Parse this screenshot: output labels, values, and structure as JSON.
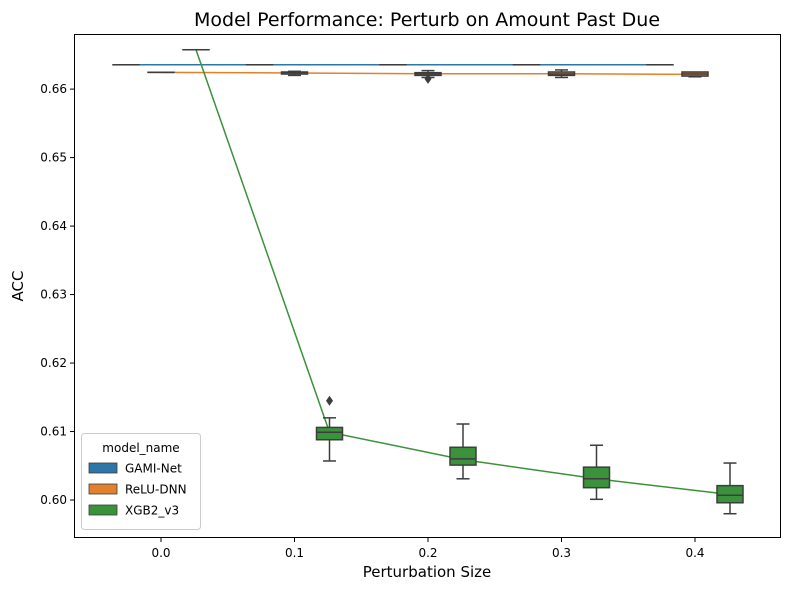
{
  "chart_data": {
    "type": "box",
    "title": "Model Performance: Perturb on Amount Past Due",
    "xlabel": "Perturbation Size",
    "ylabel": "ACC",
    "categories": [
      "0.0",
      "0.1",
      "0.2",
      "0.3",
      "0.4"
    ],
    "ylim": [
      0.5946,
      0.6679
    ],
    "yticks": [
      "0.60",
      "0.61",
      "0.62",
      "0.63",
      "0.64",
      "0.65",
      "0.66"
    ],
    "grid": false,
    "legend": {
      "title": "model_name",
      "placement": "lower-left"
    },
    "series": [
      {
        "name": "GAMI-Net",
        "color": "#2d76a8",
        "mean_line": [
          0.66355,
          0.66355,
          0.66355,
          0.66355,
          0.66355
        ],
        "boxes": [
          {
            "whislo": 0.66355,
            "q1": 0.66355,
            "med": 0.66355,
            "q3": 0.66355,
            "whishi": 0.66355,
            "fliers": []
          },
          {
            "whislo": 0.66355,
            "q1": 0.66355,
            "med": 0.66355,
            "q3": 0.66355,
            "whishi": 0.66355,
            "fliers": []
          },
          {
            "whislo": 0.66355,
            "q1": 0.66355,
            "med": 0.66355,
            "q3": 0.66355,
            "whishi": 0.66355,
            "fliers": []
          },
          {
            "whislo": 0.66355,
            "q1": 0.66355,
            "med": 0.66355,
            "q3": 0.66355,
            "whishi": 0.66355,
            "fliers": []
          },
          {
            "whislo": 0.66355,
            "q1": 0.66355,
            "med": 0.66355,
            "q3": 0.66355,
            "whishi": 0.66355,
            "fliers": []
          }
        ]
      },
      {
        "name": "ReLU-DNN",
        "color": "#e1812c",
        "mean_line": [
          0.66245,
          0.66235,
          0.66225,
          0.66225,
          0.66215
        ],
        "boxes": [
          {
            "whislo": 0.66245,
            "q1": 0.66245,
            "med": 0.66245,
            "q3": 0.66245,
            "whishi": 0.66245,
            "fliers": []
          },
          {
            "whislo": 0.662,
            "q1": 0.6622,
            "med": 0.6624,
            "q3": 0.6625,
            "whishi": 0.6626,
            "fliers": []
          },
          {
            "whislo": 0.6617,
            "q1": 0.662,
            "med": 0.6622,
            "q3": 0.6624,
            "whishi": 0.6627,
            "fliers": [
              0.6615
            ]
          },
          {
            "whislo": 0.6617,
            "q1": 0.662,
            "med": 0.6622,
            "q3": 0.6625,
            "whishi": 0.6628,
            "fliers": []
          },
          {
            "whislo": 0.6618,
            "q1": 0.6619,
            "med": 0.6622,
            "q3": 0.6625,
            "whishi": 0.6625,
            "fliers": []
          }
        ]
      },
      {
        "name": "XGB2_v3",
        "color": "#3a923a",
        "mean_line": [
          0.66575,
          0.6099,
          0.6059,
          0.6031,
          0.6008
        ],
        "boxes": [
          {
            "whislo": 0.66575,
            "q1": 0.66575,
            "med": 0.66575,
            "q3": 0.66575,
            "whishi": 0.66575,
            "fliers": []
          },
          {
            "whislo": 0.6057,
            "q1": 0.6088,
            "med": 0.6099,
            "q3": 0.6106,
            "whishi": 0.612,
            "fliers": [
              0.6145
            ]
          },
          {
            "whislo": 0.6031,
            "q1": 0.6051,
            "med": 0.606,
            "q3": 0.6077,
            "whishi": 0.6111,
            "fliers": []
          },
          {
            "whislo": 0.6001,
            "q1": 0.6018,
            "med": 0.6031,
            "q3": 0.6048,
            "whishi": 0.608,
            "fliers": []
          },
          {
            "whislo": 0.598,
            "q1": 0.5996,
            "med": 0.6007,
            "q3": 0.6021,
            "whishi": 0.6054,
            "fliers": []
          }
        ]
      }
    ]
  }
}
